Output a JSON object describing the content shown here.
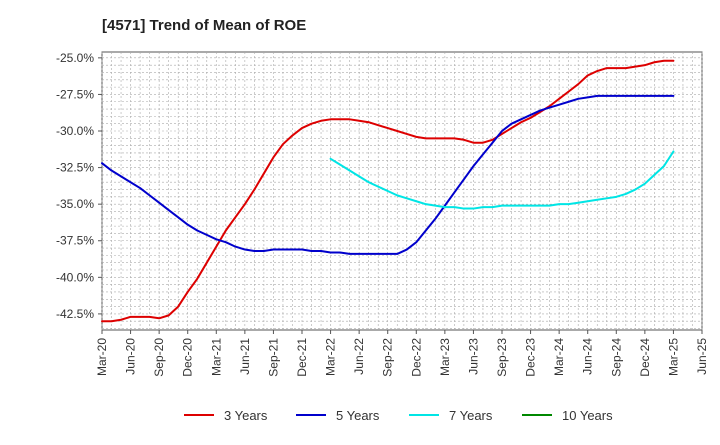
{
  "chart_data": {
    "type": "line",
    "title": "[4571]  Trend of Mean of ROE",
    "xlabel": "",
    "ylabel": "",
    "x_ticks": [
      "Mar-20",
      "Jun-20",
      "Sep-20",
      "Dec-20",
      "Mar-21",
      "Jun-21",
      "Sep-21",
      "Dec-21",
      "Mar-22",
      "Jun-22",
      "Sep-22",
      "Dec-22",
      "Mar-23",
      "Jun-23",
      "Sep-23",
      "Dec-23",
      "Mar-24",
      "Jun-24",
      "Sep-24",
      "Dec-24",
      "Mar-25",
      "Jun-25"
    ],
    "y_ticks": [
      "-25.0%",
      "-27.5%",
      "-30.0%",
      "-32.5%",
      "-35.0%",
      "-37.5%",
      "-40.0%",
      "-42.5%"
    ],
    "y_tick_values": [
      -25.0,
      -27.5,
      -30.0,
      -32.5,
      -35.0,
      -37.5,
      -40.0,
      -42.5
    ],
    "ylim": [
      -43.6,
      -24.6
    ],
    "grid": true,
    "legend_position": "bottom",
    "series": [
      {
        "name": "3 Years",
        "color": "#dd0000",
        "x": [
          "Mar-20",
          "Apr-20",
          "May-20",
          "Jun-20",
          "Jul-20",
          "Aug-20",
          "Sep-20",
          "Oct-20",
          "Nov-20",
          "Dec-20",
          "Jan-21",
          "Feb-21",
          "Mar-21",
          "Apr-21",
          "May-21",
          "Jun-21",
          "Jul-21",
          "Aug-21",
          "Sep-21",
          "Oct-21",
          "Nov-21",
          "Dec-21",
          "Jan-22",
          "Feb-22",
          "Mar-22",
          "Apr-22",
          "May-22",
          "Jun-22",
          "Jul-22",
          "Aug-22",
          "Sep-22",
          "Oct-22",
          "Nov-22",
          "Dec-22",
          "Jan-23",
          "Feb-23",
          "Mar-23",
          "Apr-23",
          "May-23",
          "Jun-23",
          "Jul-23",
          "Aug-23",
          "Sep-23",
          "Oct-23",
          "Nov-23",
          "Dec-23",
          "Jan-24",
          "Feb-24",
          "Mar-24",
          "Apr-24",
          "May-24",
          "Jun-24",
          "Jul-24",
          "Aug-24",
          "Sep-24",
          "Oct-24",
          "Nov-24",
          "Dec-24",
          "Jan-25",
          "Feb-25",
          "Mar-25"
        ],
        "values": [
          -43.0,
          -43.0,
          -42.9,
          -42.7,
          -42.7,
          -42.7,
          -42.8,
          -42.6,
          -42.0,
          -41.0,
          -40.1,
          -39.0,
          -37.9,
          -36.8,
          -35.9,
          -35.0,
          -34.0,
          -32.9,
          -31.8,
          -30.9,
          -30.3,
          -29.8,
          -29.5,
          -29.3,
          -29.2,
          -29.2,
          -29.2,
          -29.3,
          -29.4,
          -29.6,
          -29.8,
          -30.0,
          -30.2,
          -30.4,
          -30.5,
          -30.5,
          -30.5,
          -30.5,
          -30.6,
          -30.8,
          -30.8,
          -30.6,
          -30.2,
          -29.8,
          -29.4,
          -29.1,
          -28.7,
          -28.3,
          -27.8,
          -27.3,
          -26.8,
          -26.2,
          -25.9,
          -25.7,
          -25.7,
          -25.7,
          -25.6,
          -25.5,
          -25.3,
          -25.2,
          -25.2
        ]
      },
      {
        "name": "5 Years",
        "color": "#0000cc",
        "x": [
          "Mar-20",
          "Apr-20",
          "May-20",
          "Jun-20",
          "Jul-20",
          "Aug-20",
          "Sep-20",
          "Oct-20",
          "Nov-20",
          "Dec-20",
          "Jan-21",
          "Feb-21",
          "Mar-21",
          "Apr-21",
          "May-21",
          "Jun-21",
          "Jul-21",
          "Aug-21",
          "Sep-21",
          "Oct-21",
          "Nov-21",
          "Dec-21",
          "Jan-22",
          "Feb-22",
          "Mar-22",
          "Apr-22",
          "May-22",
          "Jun-22",
          "Jul-22",
          "Aug-22",
          "Sep-22",
          "Oct-22",
          "Nov-22",
          "Dec-22",
          "Jan-23",
          "Feb-23",
          "Mar-23",
          "Apr-23",
          "May-23",
          "Jun-23",
          "Jul-23",
          "Aug-23",
          "Sep-23",
          "Oct-23",
          "Nov-23",
          "Dec-23",
          "Jan-24",
          "Feb-24",
          "Mar-24",
          "Apr-24",
          "May-24",
          "Jun-24",
          "Jul-24",
          "Aug-24",
          "Sep-24",
          "Oct-24",
          "Nov-24",
          "Dec-24",
          "Jan-25",
          "Feb-25",
          "Mar-25"
        ],
        "values": [
          -32.2,
          -32.7,
          -33.1,
          -33.5,
          -33.9,
          -34.4,
          -34.9,
          -35.4,
          -35.9,
          -36.4,
          -36.8,
          -37.1,
          -37.4,
          -37.6,
          -37.9,
          -38.1,
          -38.2,
          -38.2,
          -38.1,
          -38.1,
          -38.1,
          -38.1,
          -38.2,
          -38.2,
          -38.3,
          -38.3,
          -38.4,
          -38.4,
          -38.4,
          -38.4,
          -38.4,
          -38.4,
          -38.1,
          -37.6,
          -36.8,
          -36.0,
          -35.1,
          -34.2,
          -33.3,
          -32.4,
          -31.6,
          -30.8,
          -30.0,
          -29.5,
          -29.2,
          -28.9,
          -28.6,
          -28.4,
          -28.2,
          -28.0,
          -27.8,
          -27.7,
          -27.6,
          -27.6,
          -27.6,
          -27.6,
          -27.6,
          -27.6,
          -27.6,
          -27.6,
          -27.6
        ]
      },
      {
        "name": "7 Years",
        "color": "#00e5e5",
        "x": [
          "Mar-22",
          "Apr-22",
          "May-22",
          "Jun-22",
          "Jul-22",
          "Aug-22",
          "Sep-22",
          "Oct-22",
          "Nov-22",
          "Dec-22",
          "Jan-23",
          "Feb-23",
          "Mar-23",
          "Apr-23",
          "May-23",
          "Jun-23",
          "Jul-23",
          "Aug-23",
          "Sep-23",
          "Oct-23",
          "Nov-23",
          "Dec-23",
          "Jan-24",
          "Feb-24",
          "Mar-24",
          "Apr-24",
          "May-24",
          "Jun-24",
          "Jul-24",
          "Aug-24",
          "Sep-24",
          "Oct-24",
          "Nov-24",
          "Dec-24",
          "Jan-25",
          "Feb-25",
          "Mar-25"
        ],
        "values": [
          -31.9,
          -32.3,
          -32.7,
          -33.1,
          -33.5,
          -33.8,
          -34.1,
          -34.4,
          -34.6,
          -34.8,
          -35.0,
          -35.1,
          -35.2,
          -35.2,
          -35.3,
          -35.3,
          -35.2,
          -35.2,
          -35.1,
          -35.1,
          -35.1,
          -35.1,
          -35.1,
          -35.1,
          -35.0,
          -35.0,
          -34.9,
          -34.8,
          -34.7,
          -34.6,
          -34.5,
          -34.3,
          -34.0,
          -33.6,
          -33.0,
          -32.4,
          -31.4
        ]
      },
      {
        "name": "10 Years",
        "color": "#008800",
        "x": [],
        "values": []
      }
    ]
  }
}
